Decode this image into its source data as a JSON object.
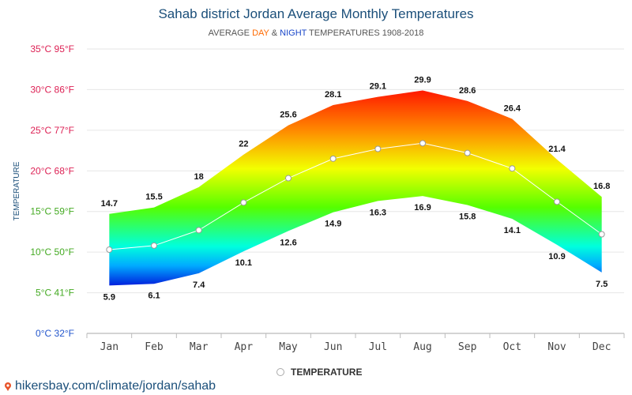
{
  "title": "Sahab district Jordan Average Monthly Temperatures",
  "subtitle": {
    "prefix": "AVERAGE",
    "day": "DAY",
    "amp": "&",
    "night": "NIGHT",
    "suffix": "TEMPERATURES 1908-2018"
  },
  "footer": "hikersbay.com/climate/jordan/sahab",
  "legend_label": "TEMPERATURE",
  "chart_data": {
    "type": "area",
    "ylabel": "TEMPERATURE",
    "ylim": [
      0,
      35
    ],
    "y_ticks": [
      {
        "value": 0,
        "label": "0°C 32°F",
        "color": "#2255cc"
      },
      {
        "value": 5,
        "label": "5°C 41°F",
        "color": "#44aa22"
      },
      {
        "value": 10,
        "label": "10°C 50°F",
        "color": "#44aa22"
      },
      {
        "value": 15,
        "label": "15°C 59°F",
        "color": "#44aa22"
      },
      {
        "value": 20,
        "label": "20°C 68°F",
        "color": "#dd2255"
      },
      {
        "value": 25,
        "label": "25°C 77°F",
        "color": "#dd2255"
      },
      {
        "value": 30,
        "label": "30°C 86°F",
        "color": "#dd2255"
      },
      {
        "value": 35,
        "label": "35°C 95°F",
        "color": "#dd2255"
      }
    ],
    "categories": [
      "Jan",
      "Feb",
      "Mar",
      "Apr",
      "May",
      "Jun",
      "Jul",
      "Aug",
      "Sep",
      "Oct",
      "Nov",
      "Dec"
    ],
    "series": [
      {
        "name": "DAY",
        "values": [
          14.7,
          15.5,
          18,
          22,
          25.6,
          28.1,
          29.1,
          29.9,
          28.6,
          26.4,
          21.4,
          16.8
        ]
      },
      {
        "name": "NIGHT",
        "values": [
          5.9,
          6.1,
          7.4,
          10.1,
          12.6,
          14.9,
          16.3,
          16.9,
          15.8,
          14.1,
          10.9,
          7.5
        ]
      },
      {
        "name": "TEMPERATURE",
        "values": [
          10.3,
          10.8,
          12.7,
          16.1,
          19.1,
          21.5,
          22.7,
          23.4,
          22.2,
          20.3,
          16.2,
          12.2
        ]
      }
    ],
    "grid": true,
    "legend_position": "bottom"
  }
}
